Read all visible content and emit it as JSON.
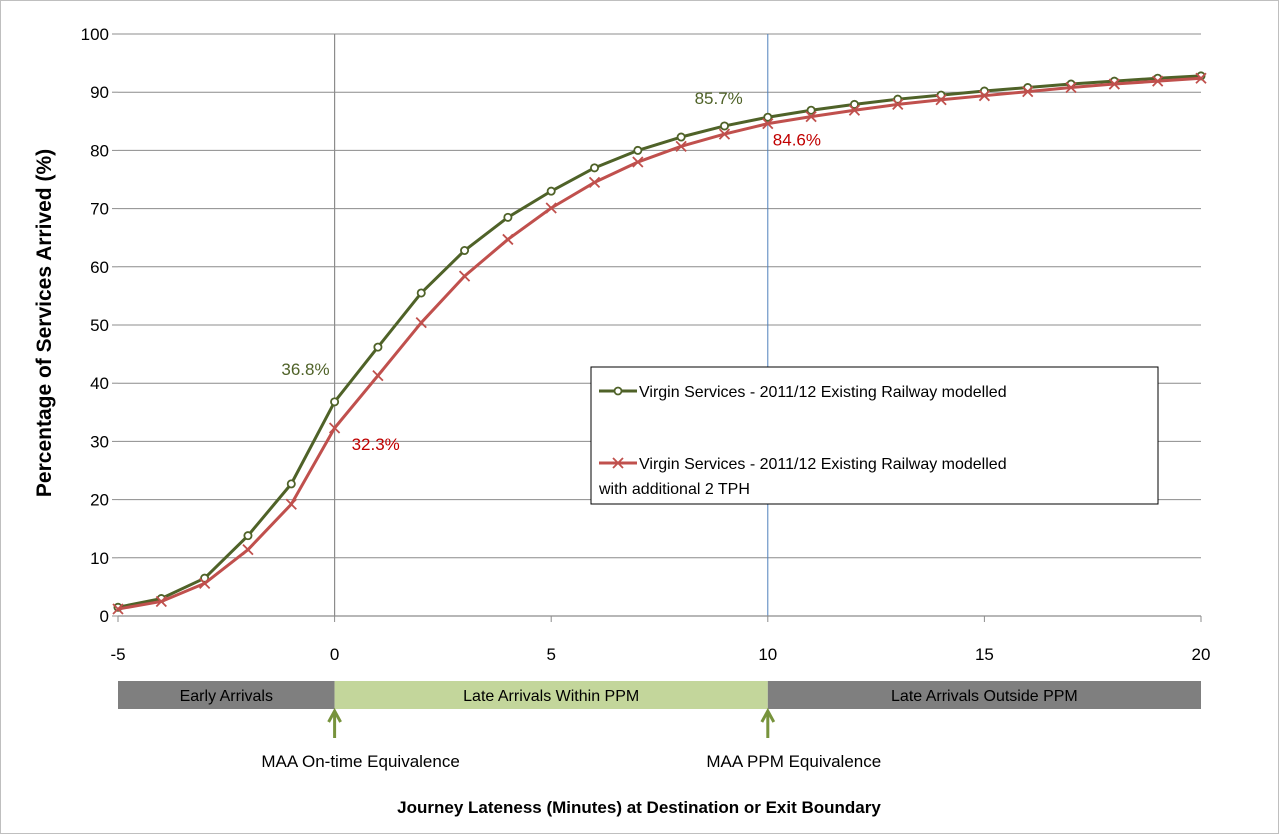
{
  "chart_data": {
    "type": "line",
    "ylabel": "Percentage of Services Arrived (%)",
    "xlabel": "Journey Lateness (Minutes) at Destination or Exit Boundary",
    "xlim": [
      -5,
      20
    ],
    "ylim": [
      0,
      100
    ],
    "x_ticks": [
      "-5",
      "0",
      "5",
      "10",
      "15",
      "20"
    ],
    "y_ticks": [
      "0",
      "10",
      "20",
      "30",
      "40",
      "50",
      "60",
      "70",
      "80",
      "90",
      "100"
    ],
    "grid": true,
    "legend_position": "center-right",
    "reference_line_x": 10,
    "x": [
      -5,
      -4,
      -3,
      -2,
      -1,
      0,
      1,
      2,
      3,
      4,
      5,
      6,
      7,
      8,
      9,
      10,
      11,
      12,
      13,
      14,
      15,
      16,
      17,
      18,
      19,
      20
    ],
    "series": [
      {
        "name": "Virgin Services - 2011/12 Existing Railway modelled",
        "color": "#4f6228",
        "marker": "circle",
        "values": [
          1.5,
          3.0,
          6.5,
          13.8,
          22.7,
          36.8,
          46.2,
          55.5,
          62.8,
          68.5,
          73.0,
          77.0,
          80.0,
          82.3,
          84.2,
          85.7,
          86.9,
          87.9,
          88.8,
          89.5,
          90.2,
          90.8,
          91.4,
          91.9,
          92.4,
          92.8
        ]
      },
      {
        "name": "Virgin Services - 2011/12 Existing Railway modelled with additional 2 TPH",
        "color": "#c0504d",
        "marker": "x",
        "values": [
          1.2,
          2.5,
          5.6,
          11.4,
          19.2,
          32.3,
          41.3,
          50.4,
          58.4,
          64.7,
          70.1,
          74.5,
          78.0,
          80.7,
          82.8,
          84.6,
          85.8,
          86.9,
          87.9,
          88.7,
          89.4,
          90.1,
          90.8,
          91.4,
          91.9,
          92.4
        ]
      }
    ],
    "annotations": [
      {
        "text": "36.8%",
        "series": 0,
        "x": 0,
        "color": "#4f6228"
      },
      {
        "text": "32.3%",
        "series": 1,
        "x": 0,
        "color": "#c00000"
      },
      {
        "text": "85.7%",
        "series": 0,
        "x": 10,
        "color": "#4f6228"
      },
      {
        "text": "84.6%",
        "series": 1,
        "x": 10,
        "color": "#c00000"
      }
    ],
    "bands": [
      {
        "label": "Early Arrivals",
        "from": -5,
        "to": 0,
        "color": "#7f7f7f"
      },
      {
        "label": "Late Arrivals Within PPM",
        "from": 0,
        "to": 10,
        "color": "#c3d69b"
      },
      {
        "label": "Late Arrivals Outside PPM",
        "from": 10,
        "to": 20,
        "color": "#7f7f7f"
      }
    ],
    "markers": [
      {
        "label": "MAA On-time Equivalence",
        "x": 0,
        "color": "#77933c"
      },
      {
        "label": "MAA PPM Equivalence",
        "x": 10,
        "color": "#77933c"
      }
    ]
  }
}
